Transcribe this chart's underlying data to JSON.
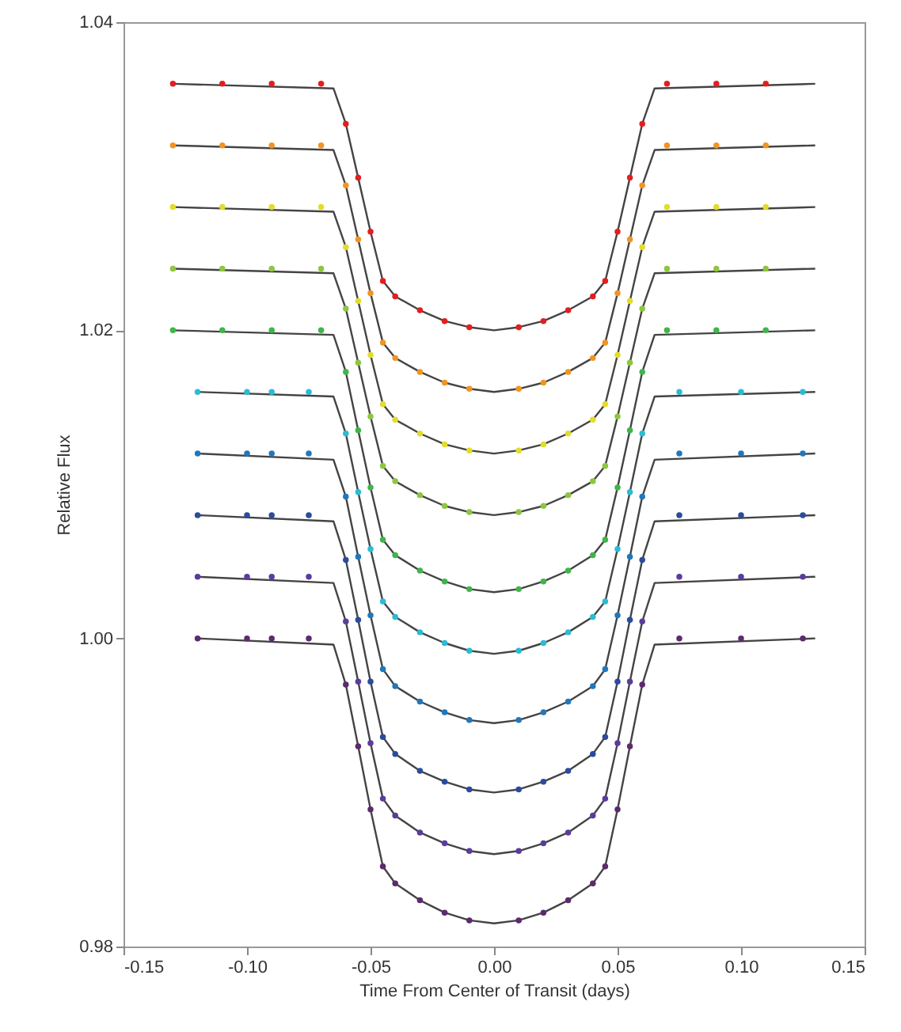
{
  "chart_data": {
    "type": "scatter",
    "xlabel": "Time From Center of Transit (days)",
    "ylabel": "Relative Flux",
    "xlim": [
      -0.15,
      0.15
    ],
    "ylim": [
      0.98,
      1.04
    ],
    "xticks": [
      {
        "value": -0.15,
        "label": "-0.15"
      },
      {
        "value": -0.1,
        "label": "-0.10"
      },
      {
        "value": -0.05,
        "label": "-0.05"
      },
      {
        "value": 0,
        "label": "0.00"
      },
      {
        "value": 0.05,
        "label": "0.05"
      },
      {
        "value": 0.1,
        "label": "0.10"
      },
      {
        "value": 0.15,
        "label": "0.15"
      }
    ],
    "yticks": [
      {
        "value": 0.98,
        "label": "0.98"
      },
      {
        "value": 1,
        "label": "1.00"
      },
      {
        "value": 1.02,
        "label": "1.02"
      },
      {
        "value": 1.04,
        "label": "1.04"
      }
    ],
    "grid": false,
    "marker": "circle",
    "series": [
      {
        "type": "line",
        "marker": "none",
        "color": "#444444",
        "x": [
          -0.13,
          -0.065,
          -0.06,
          -0.055,
          -0.05,
          -0.045,
          -0.04,
          -0.03,
          -0.02,
          -0.01,
          0,
          0.01,
          0.02,
          0.03,
          0.04,
          0.045,
          0.05,
          0.055,
          0.06,
          0.065,
          0.13
        ],
        "values": [
          1.036,
          1.0357,
          1.0334,
          1.0299,
          1.0264,
          1.0232,
          1.0222,
          1.0213,
          1.0206,
          1.0202,
          1.02,
          1.0202,
          1.0206,
          1.0213,
          1.0222,
          1.0232,
          1.0264,
          1.0299,
          1.0334,
          1.0357,
          1.036
        ]
      },
      {
        "type": "line",
        "marker": "none",
        "color": "#444444",
        "x": [
          -0.13,
          -0.065,
          -0.06,
          -0.055,
          -0.05,
          -0.045,
          -0.04,
          -0.03,
          -0.02,
          -0.01,
          0,
          0.01,
          0.02,
          0.03,
          0.04,
          0.045,
          0.05,
          0.055,
          0.06,
          0.065,
          0.13
        ],
        "values": [
          1.032,
          1.0317,
          1.0294,
          1.0259,
          1.0224,
          1.0192,
          1.0182,
          1.0173,
          1.0166,
          1.0162,
          1.016,
          1.0162,
          1.0166,
          1.0173,
          1.0182,
          1.0192,
          1.0224,
          1.0259,
          1.0294,
          1.0317,
          1.032
        ]
      },
      {
        "type": "line",
        "marker": "none",
        "color": "#444444",
        "x": [
          -0.13,
          -0.065,
          -0.06,
          -0.055,
          -0.05,
          -0.045,
          -0.04,
          -0.03,
          -0.02,
          -0.01,
          0,
          0.01,
          0.02,
          0.03,
          0.04,
          0.045,
          0.05,
          0.055,
          0.06,
          0.065,
          0.13
        ],
        "values": [
          1.028,
          1.0277,
          1.0254,
          1.0219,
          1.0184,
          1.0152,
          1.0142,
          1.0133,
          1.0126,
          1.0122,
          1.012,
          1.0122,
          1.0126,
          1.0133,
          1.0142,
          1.0152,
          1.0184,
          1.0219,
          1.0254,
          1.0277,
          1.028
        ]
      },
      {
        "type": "line",
        "marker": "none",
        "color": "#444444",
        "x": [
          -0.13,
          -0.065,
          -0.06,
          -0.055,
          -0.05,
          -0.045,
          -0.04,
          -0.03,
          -0.02,
          -0.01,
          0,
          0.01,
          0.02,
          0.03,
          0.04,
          0.045,
          0.05,
          0.055,
          0.06,
          0.065,
          0.13
        ],
        "values": [
          1.024,
          1.0237,
          1.0214,
          1.0179,
          1.0144,
          1.0112,
          1.0102,
          1.0093,
          1.0086,
          1.0082,
          1.008,
          1.0082,
          1.0086,
          1.0093,
          1.0102,
          1.0112,
          1.0144,
          1.0179,
          1.0214,
          1.0237,
          1.024
        ]
      },
      {
        "type": "line",
        "marker": "none",
        "color": "#444444",
        "x": [
          -0.13,
          -0.065,
          -0.06,
          -0.055,
          -0.05,
          -0.045,
          -0.04,
          -0.03,
          -0.02,
          -0.01,
          0,
          0.01,
          0.02,
          0.03,
          0.04,
          0.045,
          0.05,
          0.055,
          0.06,
          0.065,
          0.13
        ],
        "values": [
          1.02,
          1.0197,
          1.0173,
          1.0135,
          1.0098,
          1.0064,
          1.0054,
          1.0044,
          1.0037,
          1.0032,
          1.003,
          1.0032,
          1.0037,
          1.0044,
          1.0054,
          1.0064,
          1.0098,
          1.0135,
          1.0173,
          1.0197,
          1.02
        ]
      },
      {
        "type": "line",
        "marker": "none",
        "color": "#444444",
        "x": [
          -0.12,
          -0.065,
          -0.06,
          -0.055,
          -0.05,
          -0.045,
          -0.04,
          -0.03,
          -0.02,
          -0.01,
          0,
          0.01,
          0.02,
          0.03,
          0.04,
          0.045,
          0.05,
          0.055,
          0.06,
          0.065,
          0.13
        ],
        "values": [
          1.016,
          1.0157,
          1.0133,
          1.0095,
          1.0058,
          1.0024,
          1.0014,
          1.0004,
          0.9997,
          0.9992,
          0.999,
          0.9992,
          0.9997,
          1.0004,
          1.0014,
          1.0024,
          1.0058,
          1.0095,
          1.0133,
          1.0157,
          1.016
        ]
      },
      {
        "type": "line",
        "marker": "none",
        "color": "#444444",
        "x": [
          -0.12,
          -0.065,
          -0.06,
          -0.055,
          -0.05,
          -0.045,
          -0.04,
          -0.03,
          -0.02,
          -0.01,
          0,
          0.01,
          0.02,
          0.03,
          0.04,
          0.045,
          0.05,
          0.055,
          0.06,
          0.065,
          0.13
        ],
        "values": [
          1.012,
          1.0116,
          1.0092,
          1.0053,
          1.0015,
          0.998,
          0.9969,
          0.9959,
          0.9952,
          0.9947,
          0.9945,
          0.9947,
          0.9952,
          0.9959,
          0.9969,
          0.998,
          1.0015,
          1.0053,
          1.0092,
          1.0116,
          1.012
        ]
      },
      {
        "type": "line",
        "marker": "none",
        "color": "#444444",
        "x": [
          -0.12,
          -0.065,
          -0.06,
          -0.055,
          -0.05,
          -0.045,
          -0.04,
          -0.03,
          -0.02,
          -0.01,
          0,
          0.01,
          0.02,
          0.03,
          0.04,
          0.045,
          0.05,
          0.055,
          0.06,
          0.065,
          0.13
        ],
        "values": [
          1.008,
          1.0076,
          1.0051,
          1.0012,
          0.9972,
          0.9936,
          0.9925,
          0.9914,
          0.9907,
          0.9902,
          0.99,
          0.9902,
          0.9907,
          0.9914,
          0.9925,
          0.9936,
          0.9972,
          1.0012,
          1.0051,
          1.0076,
          1.008
        ]
      },
      {
        "type": "line",
        "marker": "none",
        "color": "#444444",
        "x": [
          -0.12,
          -0.065,
          -0.06,
          -0.055,
          -0.05,
          -0.045,
          -0.04,
          -0.03,
          -0.02,
          -0.01,
          0,
          0.01,
          0.02,
          0.03,
          0.04,
          0.045,
          0.05,
          0.055,
          0.06,
          0.065,
          0.13
        ],
        "values": [
          1.004,
          1.0036,
          1.0011,
          0.9972,
          0.9932,
          0.9896,
          0.9885,
          0.9874,
          0.9867,
          0.9862,
          0.986,
          0.9862,
          0.9867,
          0.9874,
          0.9885,
          0.9896,
          0.9932,
          0.9972,
          1.0011,
          1.0036,
          1.004
        ]
      },
      {
        "type": "line",
        "marker": "none",
        "color": "#444444",
        "x": [
          -0.12,
          -0.065,
          -0.06,
          -0.055,
          -0.05,
          -0.045,
          -0.04,
          -0.03,
          -0.02,
          -0.01,
          0,
          0.01,
          0.02,
          0.03,
          0.04,
          0.045,
          0.05,
          0.055,
          0.06,
          0.065,
          0.13
        ],
        "values": [
          1.0,
          0.9996,
          0.997,
          0.993,
          0.9889,
          0.9852,
          0.9841,
          0.983,
          0.9822,
          0.9817,
          0.9815,
          0.9817,
          0.9822,
          0.983,
          0.9841,
          0.9852,
          0.9889,
          0.993,
          0.997,
          0.9996,
          1.0
        ]
      },
      {
        "color": "#e41e1e",
        "x": [
          -0.13,
          -0.11,
          -0.09,
          -0.07,
          -0.06,
          -0.055,
          -0.05,
          -0.045,
          -0.04,
          -0.03,
          -0.02,
          -0.01,
          0.01,
          0.02,
          0.03,
          0.04,
          0.045,
          0.05,
          0.055,
          0.06,
          0.07,
          0.09,
          0.11
        ],
        "values": [
          1.036,
          1.036,
          1.036,
          1.036,
          1.0334,
          1.0299,
          1.0264,
          1.0232,
          1.0222,
          1.0213,
          1.0206,
          1.0202,
          1.0202,
          1.0206,
          1.0213,
          1.0222,
          1.0232,
          1.0264,
          1.0299,
          1.0334,
          1.036,
          1.036,
          1.036
        ]
      },
      {
        "color": "#f29422",
        "x": [
          -0.13,
          -0.11,
          -0.09,
          -0.07,
          -0.06,
          -0.055,
          -0.05,
          -0.045,
          -0.04,
          -0.03,
          -0.02,
          -0.01,
          0.01,
          0.02,
          0.03,
          0.04,
          0.045,
          0.05,
          0.055,
          0.06,
          0.07,
          0.09,
          0.11
        ],
        "values": [
          1.032,
          1.032,
          1.032,
          1.032,
          1.0294,
          1.0259,
          1.0224,
          1.0192,
          1.0182,
          1.0173,
          1.0166,
          1.0162,
          1.0162,
          1.0166,
          1.0173,
          1.0182,
          1.0192,
          1.0224,
          1.0259,
          1.0294,
          1.032,
          1.032,
          1.032
        ]
      },
      {
        "color": "#e3dc2a",
        "x": [
          -0.13,
          -0.11,
          -0.09,
          -0.07,
          -0.06,
          -0.055,
          -0.05,
          -0.045,
          -0.04,
          -0.03,
          -0.02,
          -0.01,
          0.01,
          0.02,
          0.03,
          0.04,
          0.045,
          0.05,
          0.055,
          0.06,
          0.07,
          0.09,
          0.11
        ],
        "values": [
          1.028,
          1.028,
          1.028,
          1.028,
          1.0254,
          1.0219,
          1.0184,
          1.0152,
          1.0142,
          1.0133,
          1.0126,
          1.0122,
          1.0122,
          1.0126,
          1.0133,
          1.0142,
          1.0152,
          1.0184,
          1.0219,
          1.0254,
          1.028,
          1.028,
          1.028
        ]
      },
      {
        "color": "#8dc63f",
        "x": [
          -0.13,
          -0.11,
          -0.09,
          -0.07,
          -0.06,
          -0.055,
          -0.05,
          -0.045,
          -0.04,
          -0.03,
          -0.02,
          -0.01,
          0.01,
          0.02,
          0.03,
          0.04,
          0.045,
          0.05,
          0.055,
          0.06,
          0.07,
          0.09,
          0.11
        ],
        "values": [
          1.024,
          1.024,
          1.024,
          1.024,
          1.0214,
          1.0179,
          1.0144,
          1.0112,
          1.0102,
          1.0093,
          1.0086,
          1.0082,
          1.0082,
          1.0086,
          1.0093,
          1.0102,
          1.0112,
          1.0144,
          1.0179,
          1.0214,
          1.024,
          1.024,
          1.024
        ]
      },
      {
        "color": "#3fb54a",
        "x": [
          -0.13,
          -0.11,
          -0.09,
          -0.07,
          -0.06,
          -0.055,
          -0.05,
          -0.045,
          -0.04,
          -0.03,
          -0.02,
          -0.01,
          0.01,
          0.02,
          0.03,
          0.04,
          0.045,
          0.05,
          0.055,
          0.06,
          0.07,
          0.09,
          0.11
        ],
        "values": [
          1.02,
          1.02,
          1.02,
          1.02,
          1.0173,
          1.0135,
          1.0098,
          1.0064,
          1.0054,
          1.0044,
          1.0037,
          1.0032,
          1.0032,
          1.0037,
          1.0044,
          1.0054,
          1.0064,
          1.0098,
          1.0135,
          1.0173,
          1.02,
          1.02,
          1.02
        ]
      },
      {
        "color": "#29bcd4",
        "x": [
          -0.12,
          -0.1,
          -0.09,
          -0.075,
          -0.06,
          -0.055,
          -0.05,
          -0.045,
          -0.04,
          -0.03,
          -0.02,
          -0.01,
          0.01,
          0.02,
          0.03,
          0.04,
          0.045,
          0.05,
          0.055,
          0.06,
          0.075,
          0.1,
          0.125
        ],
        "values": [
          1.016,
          1.016,
          1.016,
          1.016,
          1.0133,
          1.0095,
          1.0058,
          1.0024,
          1.0014,
          1.0004,
          0.9997,
          0.9992,
          0.9992,
          0.9997,
          1.0004,
          1.0014,
          1.0024,
          1.0058,
          1.0095,
          1.0133,
          1.016,
          1.016,
          1.016
        ]
      },
      {
        "color": "#2277bb",
        "x": [
          -0.12,
          -0.1,
          -0.09,
          -0.075,
          -0.06,
          -0.055,
          -0.05,
          -0.045,
          -0.04,
          -0.03,
          -0.02,
          -0.01,
          0.01,
          0.02,
          0.03,
          0.04,
          0.045,
          0.05,
          0.055,
          0.06,
          0.075,
          0.1,
          0.125
        ],
        "values": [
          1.012,
          1.012,
          1.012,
          1.012,
          1.0092,
          1.0053,
          1.0015,
          0.998,
          0.9969,
          0.9959,
          0.9952,
          0.9947,
          0.9947,
          0.9952,
          0.9959,
          0.9969,
          0.998,
          1.0015,
          1.0053,
          1.0092,
          1.012,
          1.012,
          1.012
        ]
      },
      {
        "color": "#2b4c9b",
        "x": [
          -0.12,
          -0.1,
          -0.09,
          -0.075,
          -0.06,
          -0.055,
          -0.05,
          -0.045,
          -0.04,
          -0.03,
          -0.02,
          -0.01,
          0.01,
          0.02,
          0.03,
          0.04,
          0.045,
          0.05,
          0.055,
          0.06,
          0.075,
          0.1,
          0.125
        ],
        "values": [
          1.008,
          1.008,
          1.008,
          1.008,
          1.0051,
          1.0012,
          0.9972,
          0.9936,
          0.9925,
          0.9914,
          0.9907,
          0.9902,
          0.9902,
          0.9907,
          0.9914,
          0.9925,
          0.9936,
          0.9972,
          1.0012,
          1.0051,
          1.008,
          1.008,
          1.008
        ]
      },
      {
        "color": "#5b3c9c",
        "x": [
          -0.12,
          -0.1,
          -0.09,
          -0.075,
          -0.06,
          -0.055,
          -0.05,
          -0.045,
          -0.04,
          -0.03,
          -0.02,
          -0.01,
          0.01,
          0.02,
          0.03,
          0.04,
          0.045,
          0.05,
          0.055,
          0.06,
          0.075,
          0.1,
          0.125
        ],
        "values": [
          1.004,
          1.004,
          1.004,
          1.004,
          1.0011,
          0.9972,
          0.9932,
          0.9896,
          0.9885,
          0.9874,
          0.9867,
          0.9862,
          0.9862,
          0.9867,
          0.9874,
          0.9885,
          0.9896,
          0.9932,
          0.9972,
          1.0011,
          1.004,
          1.004,
          1.004
        ]
      },
      {
        "color": "#5c2a6e",
        "x": [
          -0.12,
          -0.1,
          -0.09,
          -0.075,
          -0.06,
          -0.055,
          -0.05,
          -0.045,
          -0.04,
          -0.03,
          -0.02,
          -0.01,
          0.01,
          0.02,
          0.03,
          0.04,
          0.045,
          0.05,
          0.055,
          0.06,
          0.075,
          0.1,
          0.125
        ],
        "values": [
          1.0,
          1.0,
          1.0,
          1.0,
          0.997,
          0.993,
          0.9889,
          0.9852,
          0.9841,
          0.983,
          0.9822,
          0.9817,
          0.9817,
          0.9822,
          0.983,
          0.9841,
          0.9852,
          0.9889,
          0.993,
          0.997,
          1.0,
          1.0,
          1.0
        ]
      }
    ]
  }
}
